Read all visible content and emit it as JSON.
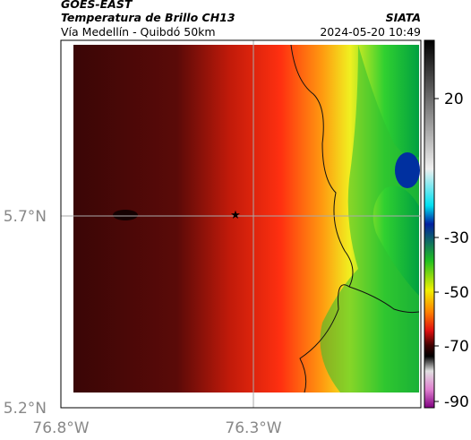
{
  "header": {
    "satellite": "GOES-EAST",
    "product": "Temperatura de Brillo CH13",
    "route": "Vía Medellín - Quibdó 50km",
    "source": "SIATA",
    "datetime": "2024-05-20 10:49"
  },
  "axes": {
    "lat_labels": [
      "5.7°N",
      "5.2°N"
    ],
    "lon_labels": [
      "76.8°W",
      "76.3°W"
    ]
  },
  "colorbar": {
    "ticks": [
      20,
      -30,
      -50,
      -70,
      -90
    ]
  }
}
